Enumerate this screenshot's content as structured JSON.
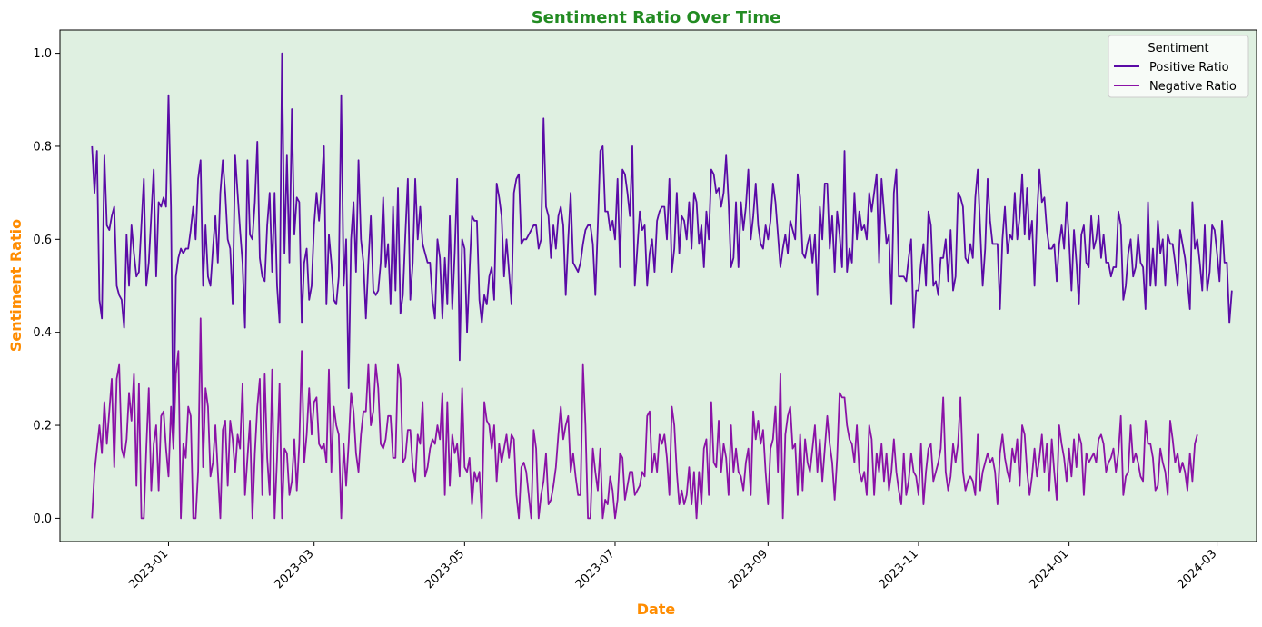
{
  "chart_data": {
    "type": "line",
    "title": "Sentiment Ratio Over Time",
    "xlabel": "Date",
    "ylabel": "Sentiment Ratio",
    "x_type": "date",
    "x_start": "2022-12-01",
    "x_step_days": 1,
    "xlim": [
      "2022-11-18",
      "2024-03-17"
    ],
    "ylim": [
      -0.05,
      1.05
    ],
    "xticks": [
      "2023-01-01",
      "2023-03-01",
      "2023-05-01",
      "2023-07-01",
      "2023-09-01",
      "2023-11-01",
      "2024-01-01",
      "2024-03-01"
    ],
    "xtick_labels": [
      "2023-01",
      "2023-03",
      "2023-05",
      "2023-07",
      "2023-09",
      "2023-11",
      "2024-01",
      "2024-03"
    ],
    "xtick_rotation": 45,
    "yticks": [
      0.0,
      0.2,
      0.4,
      0.6,
      0.8,
      1.0
    ],
    "ytick_labels": [
      "0.0",
      "0.2",
      "0.4",
      "0.6",
      "0.8",
      "1.0"
    ],
    "grid": false,
    "legend": {
      "title": "Sentiment",
      "position": "top-right"
    },
    "series": [
      {
        "name": "Positive Ratio",
        "color": "#5a0aa6",
        "values": [
          0.8,
          0.7,
          0.79,
          0.47,
          0.43,
          0.78,
          0.63,
          0.62,
          0.65,
          0.67,
          0.5,
          0.48,
          0.47,
          0.41,
          0.61,
          0.5,
          0.63,
          0.57,
          0.52,
          0.53,
          0.63,
          0.73,
          0.5,
          0.55,
          0.65,
          0.75,
          0.52,
          0.68,
          0.67,
          0.69,
          0.67,
          0.91,
          0.67,
          0.15,
          0.52,
          0.56,
          0.58,
          0.57,
          0.58,
          0.58,
          0.62,
          0.67,
          0.6,
          0.73,
          0.77,
          0.5,
          0.63,
          0.52,
          0.5,
          0.58,
          0.65,
          0.55,
          0.7,
          0.77,
          0.7,
          0.6,
          0.58,
          0.46,
          0.78,
          0.7,
          0.62,
          0.55,
          0.41,
          0.77,
          0.61,
          0.6,
          0.68,
          0.81,
          0.56,
          0.52,
          0.51,
          0.63,
          0.7,
          0.53,
          0.7,
          0.5,
          0.42,
          1.0,
          0.57,
          0.78,
          0.55,
          0.88,
          0.61,
          0.69,
          0.68,
          0.42,
          0.55,
          0.58,
          0.47,
          0.5,
          0.63,
          0.7,
          0.64,
          0.71,
          0.8,
          0.46,
          0.61,
          0.55,
          0.47,
          0.46,
          0.52,
          0.91,
          0.5,
          0.6,
          0.28,
          0.6,
          0.68,
          0.53,
          0.77,
          0.6,
          0.55,
          0.43,
          0.55,
          0.65,
          0.49,
          0.48,
          0.49,
          0.55,
          0.69,
          0.54,
          0.59,
          0.46,
          0.67,
          0.49,
          0.71,
          0.44,
          0.48,
          0.61,
          0.73,
          0.47,
          0.55,
          0.73,
          0.6,
          0.67,
          0.59,
          0.57,
          0.55,
          0.55,
          0.47,
          0.43,
          0.6,
          0.56,
          0.43,
          0.56,
          0.46,
          0.65,
          0.45,
          0.57,
          0.73,
          0.34,
          0.6,
          0.58,
          0.4,
          0.53,
          0.65,
          0.64,
          0.64,
          0.47,
          0.42,
          0.48,
          0.46,
          0.52,
          0.54,
          0.47,
          0.72,
          0.69,
          0.65,
          0.52,
          0.6,
          0.53,
          0.46,
          0.7,
          0.73,
          0.74,
          0.59,
          0.6,
          0.6,
          0.61,
          0.62,
          0.63,
          0.63,
          0.58,
          0.6,
          0.86,
          0.67,
          0.65,
          0.56,
          0.63,
          0.58,
          0.65,
          0.67,
          0.63,
          0.48,
          0.6,
          0.7,
          0.55,
          0.54,
          0.53,
          0.55,
          0.59,
          0.62,
          0.63,
          0.63,
          0.59,
          0.48,
          0.63,
          0.79,
          0.8,
          0.66,
          0.66,
          0.62,
          0.64,
          0.6,
          0.73,
          0.54,
          0.75,
          0.74,
          0.7,
          0.65,
          0.8,
          0.5,
          0.58,
          0.66,
          0.62,
          0.63,
          0.5,
          0.57,
          0.6,
          0.53,
          0.64,
          0.66,
          0.67,
          0.67,
          0.6,
          0.73,
          0.53,
          0.58,
          0.7,
          0.57,
          0.65,
          0.64,
          0.6,
          0.68,
          0.58,
          0.7,
          0.68,
          0.59,
          0.63,
          0.54,
          0.66,
          0.6,
          0.75,
          0.74,
          0.7,
          0.71,
          0.67,
          0.7,
          0.78,
          0.68,
          0.54,
          0.56,
          0.68,
          0.54,
          0.68,
          0.62,
          0.67,
          0.75,
          0.6,
          0.65,
          0.72,
          0.63,
          0.59,
          0.58,
          0.63,
          0.6,
          0.64,
          0.72,
          0.68,
          0.61,
          0.54,
          0.58,
          0.61,
          0.57,
          0.64,
          0.62,
          0.6,
          0.74,
          0.69,
          0.57,
          0.56,
          0.59,
          0.61,
          0.55,
          0.61,
          0.48,
          0.67,
          0.6,
          0.72,
          0.72,
          0.58,
          0.65,
          0.53,
          0.66,
          0.61,
          0.54,
          0.79,
          0.53,
          0.58,
          0.55,
          0.7,
          0.6,
          0.66,
          0.62,
          0.63,
          0.6,
          0.7,
          0.66,
          0.7,
          0.74,
          0.55,
          0.73,
          0.66,
          0.59,
          0.61,
          0.46,
          0.7,
          0.75,
          0.52,
          0.52,
          0.52,
          0.51,
          0.56,
          0.6,
          0.41,
          0.49,
          0.49,
          0.55,
          0.59,
          0.5,
          0.66,
          0.63,
          0.5,
          0.51,
          0.48,
          0.56,
          0.56,
          0.6,
          0.51,
          0.62,
          0.49,
          0.52,
          0.7,
          0.69,
          0.67,
          0.56,
          0.55,
          0.59,
          0.56,
          0.69,
          0.75,
          0.62,
          0.5,
          0.58,
          0.73,
          0.64,
          0.59,
          0.59,
          0.59,
          0.45,
          0.6,
          0.67,
          0.57,
          0.61,
          0.6,
          0.7,
          0.6,
          0.65,
          0.74,
          0.61,
          0.71,
          0.6,
          0.64,
          0.5,
          0.65,
          0.75,
          0.68,
          0.69,
          0.62,
          0.58,
          0.58,
          0.59,
          0.51,
          0.59,
          0.63,
          0.58,
          0.68,
          0.6,
          0.49,
          0.62,
          0.55,
          0.46,
          0.61,
          0.63,
          0.55,
          0.54,
          0.65,
          0.58,
          0.6,
          0.65,
          0.56,
          0.61,
          0.55,
          0.55,
          0.52,
          0.54,
          0.54,
          0.66,
          0.63,
          0.47,
          0.5,
          0.57,
          0.6,
          0.52,
          0.54,
          0.61,
          0.55,
          0.54,
          0.45,
          0.68,
          0.5,
          0.58,
          0.5,
          0.64,
          0.57,
          0.6,
          0.5,
          0.61,
          0.59,
          0.59,
          0.55,
          0.5,
          0.62,
          0.59,
          0.56,
          0.51,
          0.45,
          0.68,
          0.58,
          0.6,
          0.55,
          0.49,
          0.63,
          0.49,
          0.53,
          0.63,
          0.62,
          0.57,
          0.51,
          0.64,
          0.55,
          0.55,
          0.42,
          0.49
        ]
      },
      {
        "name": "Negative Ratio",
        "color": "#8a12a6",
        "values": [
          0.0,
          0.1,
          0.15,
          0.2,
          0.14,
          0.25,
          0.16,
          0.23,
          0.3,
          0.11,
          0.3,
          0.33,
          0.15,
          0.13,
          0.17,
          0.27,
          0.21,
          0.31,
          0.07,
          0.29,
          0.0,
          0.0,
          0.15,
          0.28,
          0.06,
          0.16,
          0.2,
          0.06,
          0.22,
          0.23,
          0.15,
          0.09,
          0.24,
          0.15,
          0.31,
          0.36,
          0.0,
          0.16,
          0.13,
          0.24,
          0.22,
          0.0,
          0.0,
          0.1,
          0.43,
          0.11,
          0.28,
          0.24,
          0.09,
          0.12,
          0.2,
          0.1,
          0.0,
          0.19,
          0.21,
          0.07,
          0.21,
          0.17,
          0.1,
          0.18,
          0.15,
          0.29,
          0.05,
          0.13,
          0.21,
          0.0,
          0.14,
          0.24,
          0.3,
          0.05,
          0.31,
          0.13,
          0.05,
          0.32,
          0.0,
          0.13,
          0.29,
          0.0,
          0.15,
          0.14,
          0.05,
          0.08,
          0.17,
          0.06,
          0.16,
          0.36,
          0.12,
          0.18,
          0.28,
          0.18,
          0.25,
          0.26,
          0.16,
          0.15,
          0.16,
          0.12,
          0.32,
          0.1,
          0.24,
          0.2,
          0.18,
          0.0,
          0.16,
          0.07,
          0.16,
          0.27,
          0.23,
          0.14,
          0.1,
          0.18,
          0.23,
          0.23,
          0.33,
          0.2,
          0.23,
          0.33,
          0.28,
          0.16,
          0.15,
          0.17,
          0.22,
          0.22,
          0.13,
          0.13,
          0.33,
          0.3,
          0.12,
          0.13,
          0.19,
          0.19,
          0.11,
          0.08,
          0.18,
          0.16,
          0.25,
          0.09,
          0.11,
          0.15,
          0.17,
          0.16,
          0.2,
          0.17,
          0.27,
          0.05,
          0.25,
          0.07,
          0.18,
          0.14,
          0.16,
          0.09,
          0.28,
          0.11,
          0.1,
          0.13,
          0.03,
          0.1,
          0.08,
          0.1,
          0.0,
          0.25,
          0.21,
          0.2,
          0.15,
          0.2,
          0.08,
          0.16,
          0.12,
          0.15,
          0.18,
          0.13,
          0.18,
          0.17,
          0.05,
          0.0,
          0.11,
          0.12,
          0.1,
          0.05,
          0.0,
          0.19,
          0.15,
          0.0,
          0.05,
          0.08,
          0.14,
          0.03,
          0.04,
          0.07,
          0.11,
          0.18,
          0.24,
          0.17,
          0.2,
          0.22,
          0.1,
          0.14,
          0.09,
          0.05,
          0.05,
          0.33,
          0.2,
          0.0,
          0.0,
          0.15,
          0.1,
          0.06,
          0.15,
          0.0,
          0.04,
          0.03,
          0.09,
          0.06,
          0.0,
          0.04,
          0.14,
          0.13,
          0.04,
          0.07,
          0.1,
          0.1,
          0.05,
          0.06,
          0.07,
          0.1,
          0.09,
          0.22,
          0.23,
          0.1,
          0.14,
          0.1,
          0.18,
          0.16,
          0.18,
          0.13,
          0.05,
          0.24,
          0.2,
          0.1,
          0.03,
          0.06,
          0.03,
          0.05,
          0.11,
          0.03,
          0.1,
          0.0,
          0.1,
          0.03,
          0.15,
          0.17,
          0.05,
          0.25,
          0.12,
          0.11,
          0.21,
          0.1,
          0.16,
          0.13,
          0.05,
          0.2,
          0.1,
          0.15,
          0.1,
          0.09,
          0.06,
          0.12,
          0.15,
          0.05,
          0.23,
          0.17,
          0.21,
          0.16,
          0.19,
          0.1,
          0.03,
          0.15,
          0.17,
          0.24,
          0.1,
          0.31,
          0.0,
          0.18,
          0.22,
          0.24,
          0.15,
          0.16,
          0.05,
          0.18,
          0.06,
          0.17,
          0.12,
          0.1,
          0.15,
          0.2,
          0.1,
          0.17,
          0.08,
          0.15,
          0.22,
          0.16,
          0.12,
          0.04,
          0.13,
          0.27,
          0.26,
          0.26,
          0.2,
          0.17,
          0.16,
          0.12,
          0.2,
          0.1,
          0.08,
          0.1,
          0.05,
          0.2,
          0.17,
          0.05,
          0.14,
          0.1,
          0.16,
          0.08,
          0.14,
          0.06,
          0.1,
          0.17,
          0.1,
          0.06,
          0.03,
          0.14,
          0.05,
          0.08,
          0.14,
          0.1,
          0.09,
          0.05,
          0.16,
          0.03,
          0.1,
          0.15,
          0.16,
          0.08,
          0.1,
          0.12,
          0.15,
          0.26,
          0.1,
          0.06,
          0.09,
          0.16,
          0.12,
          0.16,
          0.26,
          0.1,
          0.06,
          0.08,
          0.09,
          0.08,
          0.05,
          0.18,
          0.06,
          0.1,
          0.12,
          0.14,
          0.12,
          0.13,
          0.1,
          0.03,
          0.14,
          0.18,
          0.13,
          0.1,
          0.08,
          0.15,
          0.12,
          0.17,
          0.07,
          0.2,
          0.18,
          0.1,
          0.05,
          0.09,
          0.15,
          0.09,
          0.13,
          0.18,
          0.1,
          0.16,
          0.06,
          0.17,
          0.1,
          0.04,
          0.2,
          0.16,
          0.13,
          0.08,
          0.15,
          0.09,
          0.17,
          0.11,
          0.18,
          0.16,
          0.05,
          0.14,
          0.12,
          0.13,
          0.14,
          0.12,
          0.17,
          0.18,
          0.16,
          0.1,
          0.12,
          0.13,
          0.15,
          0.1,
          0.14,
          0.22,
          0.05,
          0.09,
          0.1,
          0.2,
          0.12,
          0.14,
          0.12,
          0.09,
          0.08,
          0.21,
          0.16,
          0.16,
          0.13,
          0.06,
          0.07,
          0.15,
          0.12,
          0.1,
          0.05,
          0.21,
          0.17,
          0.12,
          0.14,
          0.1,
          0.12,
          0.1,
          0.06,
          0.14,
          0.08,
          0.16,
          0.18
        ]
      }
    ]
  },
  "colors": {
    "plot_background": "#dff0e1",
    "title_color": "#228b22",
    "axis_title_color": "#ff8c00"
  }
}
